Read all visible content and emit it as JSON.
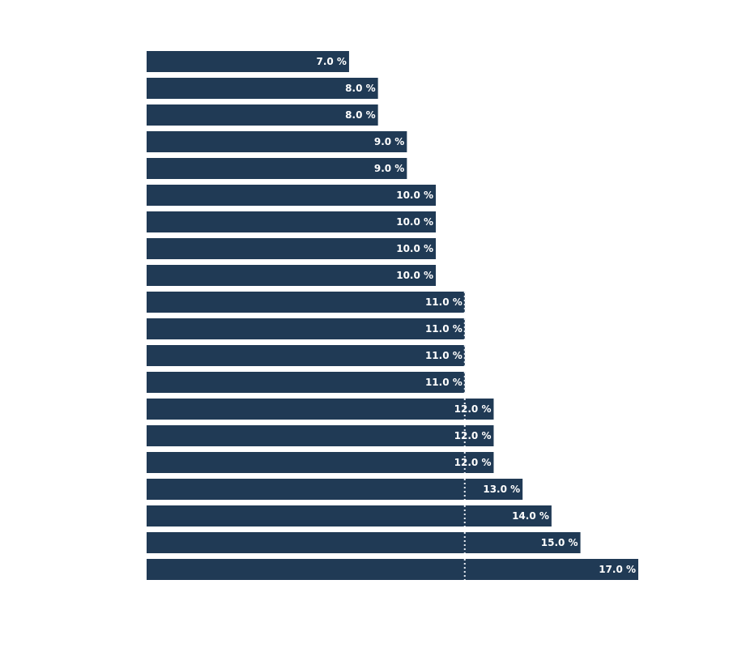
{
  "chart_data": {
    "type": "bar",
    "orientation": "horizontal",
    "title": "",
    "xlabel": "",
    "ylabel": "",
    "xlim": [
      0,
      17
    ],
    "grid": false,
    "legend": "none",
    "colors": {
      "bar": "#203a55",
      "reference_line": "#e8edf3"
    },
    "value_suffix": " %",
    "values": [
      7.0,
      8.0,
      8.0,
      9.0,
      9.0,
      10.0,
      10.0,
      10.0,
      10.0,
      11.0,
      11.0,
      11.0,
      11.0,
      12.0,
      12.0,
      12.0,
      13.0,
      14.0,
      15.0,
      17.0
    ],
    "labels": [
      "7.0 %",
      "8.0 %",
      "8.0 %",
      "9.0 %",
      "9.0 %",
      "10.0 %",
      "10.0 %",
      "10.0 %",
      "10.0 %",
      "11.0 %",
      "11.0 %",
      "11.0 %",
      "11.0 %",
      "12.0 %",
      "12.0 %",
      "12.0 %",
      "13.0 %",
      "14.0 %",
      "15.0 %",
      "17.0 %"
    ],
    "reference_line": {
      "value": 11.0,
      "style": "dotted"
    }
  }
}
